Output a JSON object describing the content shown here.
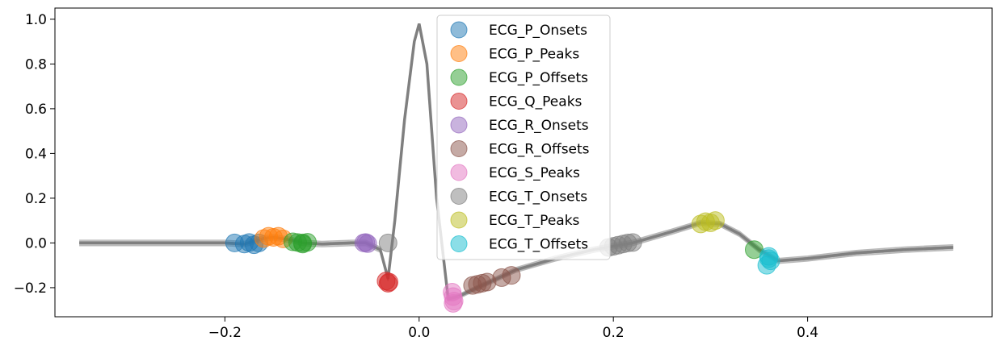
{
  "chart_data": {
    "type": "line",
    "title": "",
    "xlabel": "",
    "ylabel": "",
    "xlim": [
      -0.375,
      0.59
    ],
    "ylim": [
      -0.33,
      1.05
    ],
    "xticks": [
      -0.2,
      0.0,
      0.2,
      0.4
    ],
    "xtick_labels": [
      "−0.2",
      "0.0",
      "0.2",
      "0.4"
    ],
    "yticks": [
      -0.2,
      0.0,
      0.2,
      0.4,
      0.6,
      0.8,
      1.0
    ],
    "ytick_labels": [
      "−0.2",
      "0.0",
      "0.2",
      "0.4",
      "0.6",
      "0.8",
      "1.0"
    ],
    "grid": false,
    "legend_position": "upper-center",
    "ecg_color": "#808080",
    "ecg_curve": [
      [
        -0.35,
        0.0
      ],
      [
        -0.3,
        0.0
      ],
      [
        -0.25,
        0.0
      ],
      [
        -0.2,
        0.0
      ],
      [
        -0.18,
        -0.005
      ],
      [
        -0.16,
        0.02
      ],
      [
        -0.15,
        0.025
      ],
      [
        -0.13,
        0.012
      ],
      [
        -0.12,
        0.0
      ],
      [
        -0.1,
        -0.005
      ],
      [
        -0.07,
        0.0
      ],
      [
        -0.055,
        0.0
      ],
      [
        -0.04,
        -0.03
      ],
      [
        -0.032,
        -0.16
      ],
      [
        -0.025,
        0.1
      ],
      [
        -0.015,
        0.55
      ],
      [
        -0.005,
        0.9
      ],
      [
        0.0,
        0.98
      ],
      [
        0.008,
        0.8
      ],
      [
        0.018,
        0.2
      ],
      [
        0.03,
        -0.25
      ],
      [
        0.04,
        -0.24
      ],
      [
        0.06,
        -0.2
      ],
      [
        0.08,
        -0.16
      ],
      [
        0.1,
        -0.12
      ],
      [
        0.14,
        -0.07
      ],
      [
        0.18,
        -0.03
      ],
      [
        0.22,
        0.0
      ],
      [
        0.26,
        0.05
      ],
      [
        0.29,
        0.09
      ],
      [
        0.31,
        0.085
      ],
      [
        0.33,
        0.04
      ],
      [
        0.35,
        -0.03
      ],
      [
        0.37,
        -0.08
      ],
      [
        0.4,
        -0.07
      ],
      [
        0.45,
        -0.045
      ],
      [
        0.5,
        -0.03
      ],
      [
        0.55,
        -0.02
      ]
    ],
    "series": [
      {
        "name": "ECG_P_Onsets",
        "color": "#1f77b4",
        "x": [
          -0.19,
          -0.18,
          -0.175,
          -0.17,
          -0.165
        ],
        "y": [
          0.0,
          -0.005,
          0.002,
          -0.008,
          0.0
        ]
      },
      {
        "name": "ECG_P_Peaks",
        "color": "#ff7f0e",
        "x": [
          -0.16,
          -0.155,
          -0.15,
          -0.145,
          -0.14
        ],
        "y": [
          0.02,
          0.03,
          0.025,
          0.03,
          0.018
        ]
      },
      {
        "name": "ECG_P_Offsets",
        "color": "#2ca02c",
        "x": [
          -0.13,
          -0.125,
          -0.12,
          -0.115,
          -0.12,
          0.345
        ],
        "y": [
          0.005,
          0.002,
          0.0,
          0.003,
          -0.005,
          -0.03
        ]
      },
      {
        "name": "ECG_Q_Peaks",
        "color": "#d62728",
        "x": [
          -0.034,
          -0.032,
          -0.031
        ],
        "y": [
          -0.17,
          -0.18,
          -0.175
        ]
      },
      {
        "name": "ECG_R_Onsets",
        "color": "#9467bd",
        "x": [
          -0.057,
          -0.055,
          -0.053
        ],
        "y": [
          0.0,
          0.002,
          -0.003
        ]
      },
      {
        "name": "ECG_R_Offsets",
        "color": "#8c564b",
        "x": [
          0.055,
          0.06,
          0.065,
          0.07,
          0.085,
          0.095
        ],
        "y": [
          -0.19,
          -0.185,
          -0.18,
          -0.175,
          -0.155,
          -0.145
        ]
      },
      {
        "name": "ECG_S_Peaks",
        "color": "#e377c2",
        "x": [
          0.034,
          0.035,
          0.036,
          0.035
        ],
        "y": [
          -0.22,
          -0.24,
          -0.26,
          -0.27
        ]
      },
      {
        "name": "ECG_T_Onsets",
        "color": "#7f7f7f",
        "x": [
          -0.032,
          0.195,
          0.2,
          0.205,
          0.21,
          0.215,
          0.22
        ],
        "y": [
          0.0,
          -0.02,
          -0.015,
          -0.01,
          -0.005,
          0.0,
          0.002
        ]
      },
      {
        "name": "ECG_T_Peaks",
        "color": "#bcbd22",
        "x": [
          0.29,
          0.295,
          0.3,
          0.305
        ],
        "y": [
          0.085,
          0.095,
          0.09,
          0.1
        ]
      },
      {
        "name": "ECG_T_Offsets",
        "color": "#17becf",
        "x": [
          0.36,
          0.362,
          0.358,
          0.36
        ],
        "y": [
          -0.06,
          -0.08,
          -0.1,
          -0.07
        ]
      }
    ]
  }
}
